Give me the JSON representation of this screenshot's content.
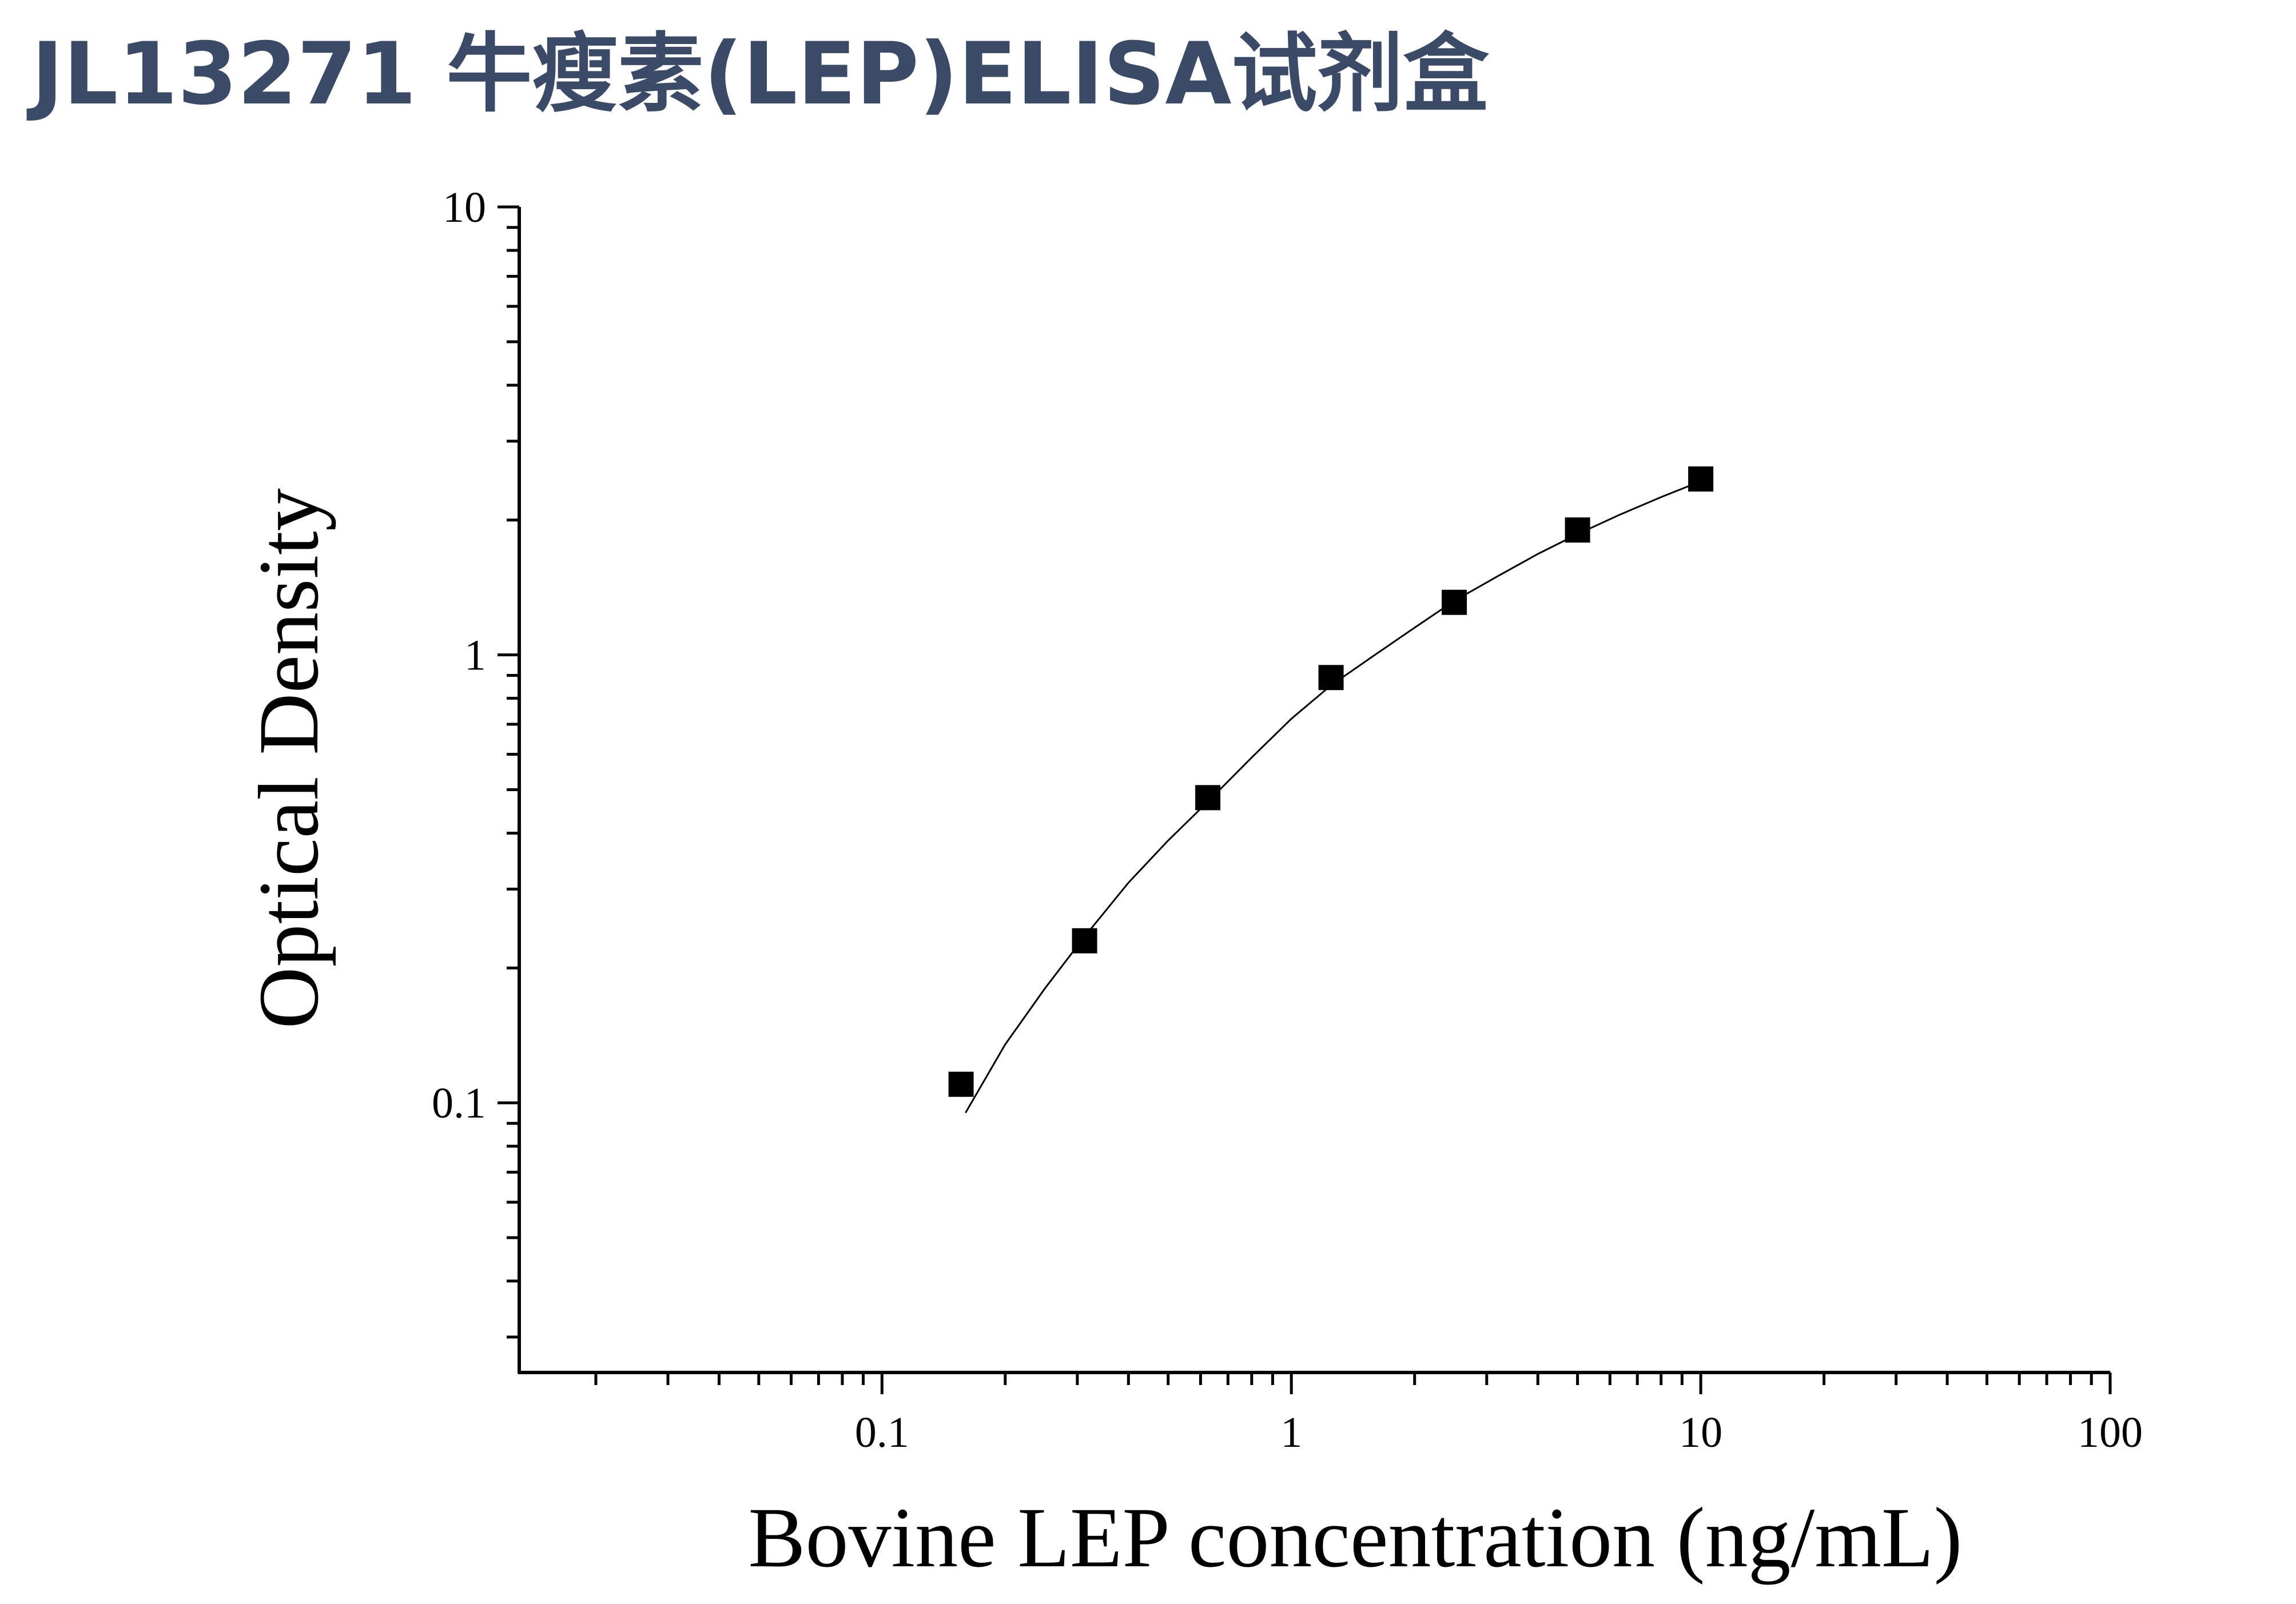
{
  "header": {
    "title": "JL13271 牛瘦素(LEP)ELISA试剂盒",
    "color": "#3B4A66"
  },
  "chart_data": {
    "type": "scatter",
    "title": "",
    "xlabel": "Bovine LEP concentration (ng/mL)",
    "ylabel": "Optical Density",
    "x_scale": "log",
    "y_scale": "log",
    "xlim": [
      0.013,
      100
    ],
    "ylim": [
      0.025,
      10
    ],
    "x_ticks": [
      {
        "value": 0.1,
        "label": "0.1"
      },
      {
        "value": 1,
        "label": "1"
      },
      {
        "value": 10,
        "label": "10"
      },
      {
        "value": 100,
        "label": "100"
      }
    ],
    "y_ticks": [
      {
        "value": 0.1,
        "label": "0.1"
      },
      {
        "value": 1,
        "label": "1"
      },
      {
        "value": 10,
        "label": "10"
      }
    ],
    "grid": false,
    "legend": "none",
    "series": [
      {
        "marker": "square",
        "color": "#000000",
        "points": [
          {
            "x": 0.156,
            "y": 0.11
          },
          {
            "x": 0.3125,
            "y": 0.23
          },
          {
            "x": 0.625,
            "y": 0.48
          },
          {
            "x": 1.25,
            "y": 0.89
          },
          {
            "x": 2.5,
            "y": 1.31
          },
          {
            "x": 5,
            "y": 1.9
          },
          {
            "x": 10,
            "y": 2.47
          }
        ]
      }
    ],
    "fit_curve": {
      "color": "#000000",
      "points": [
        {
          "x": 0.16,
          "y": 0.095
        },
        {
          "x": 0.2,
          "y": 0.135
        },
        {
          "x": 0.25,
          "y": 0.18
        },
        {
          "x": 0.3125,
          "y": 0.235
        },
        {
          "x": 0.4,
          "y": 0.31
        },
        {
          "x": 0.5,
          "y": 0.385
        },
        {
          "x": 0.625,
          "y": 0.47
        },
        {
          "x": 0.8,
          "y": 0.59
        },
        {
          "x": 1,
          "y": 0.72
        },
        {
          "x": 1.25,
          "y": 0.855
        },
        {
          "x": 1.6,
          "y": 1.0
        },
        {
          "x": 2,
          "y": 1.15
        },
        {
          "x": 2.5,
          "y": 1.32
        },
        {
          "x": 3.2,
          "y": 1.5
        },
        {
          "x": 4,
          "y": 1.68
        },
        {
          "x": 5,
          "y": 1.86
        },
        {
          "x": 6.3,
          "y": 2.05
        },
        {
          "x": 8,
          "y": 2.25
        },
        {
          "x": 10,
          "y": 2.44
        }
      ]
    }
  }
}
